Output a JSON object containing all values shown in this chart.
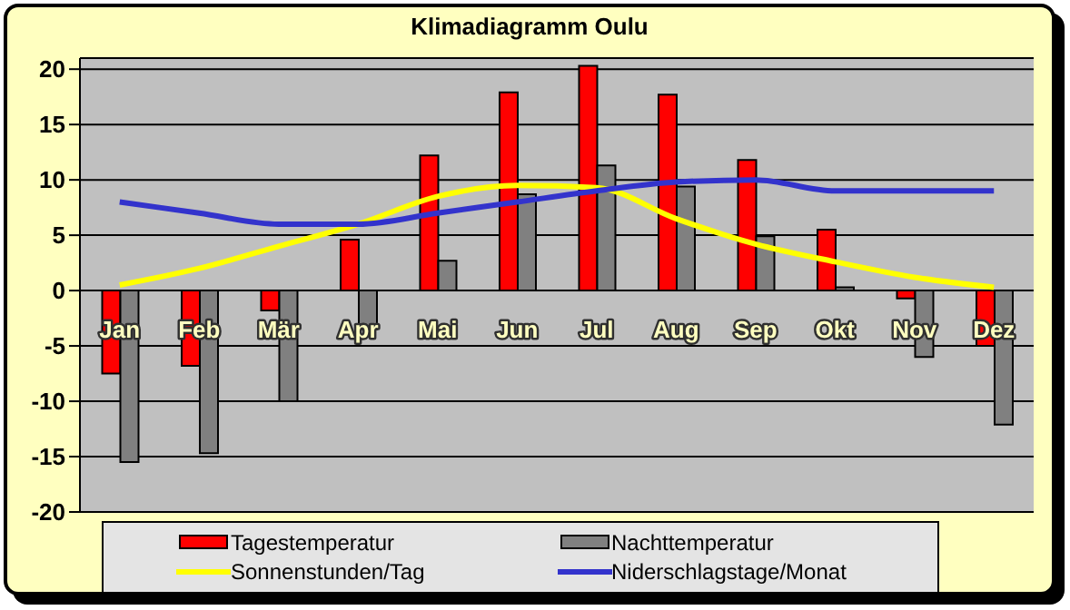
{
  "chart_data": {
    "type": "bar",
    "title": "Klimadiagramm Oulu",
    "categories": [
      "Jan",
      "Feb",
      "Mär",
      "Apr",
      "Mai",
      "Jun",
      "Jul",
      "Aug",
      "Sep",
      "Okt",
      "Nov",
      "Dez"
    ],
    "series": [
      {
        "name": "Tagestemperatur",
        "color": "#ff0000",
        "values": [
          -7.5,
          -6.8,
          -1.8,
          4.6,
          12.2,
          17.9,
          20.3,
          17.7,
          11.8,
          5.5,
          -0.7,
          -5.0
        ]
      },
      {
        "name": "Nachttemperatur",
        "color": "#808080",
        "values": [
          -15.5,
          -14.7,
          -10.0,
          -3.5,
          2.7,
          8.7,
          11.3,
          9.4,
          4.9,
          0.3,
          -6.0,
          -12.1
        ]
      },
      {
        "name": "Sonnenstunden/Tag",
        "type": "line",
        "color": "#ffff00",
        "values": [
          0.5,
          2.0,
          4.0,
          6.0,
          8.5,
          9.5,
          9.3,
          6.5,
          4.2,
          2.6,
          1.2,
          0.3
        ]
      },
      {
        "name": "Niderschlagstage/Monat",
        "type": "line",
        "color": "#3333cc",
        "values": [
          8.0,
          7.0,
          6.0,
          6.0,
          7.0,
          8.0,
          9.0,
          9.8,
          10.0,
          9.0,
          9.0,
          9.0
        ]
      }
    ],
    "ylim": [
      -20,
      21
    ],
    "yticks": [
      -20,
      -15,
      -10,
      -5,
      0,
      5,
      10,
      15,
      20
    ],
    "grid": "y",
    "legend": "bottom",
    "marker": "none",
    "line_style": "solid"
  }
}
